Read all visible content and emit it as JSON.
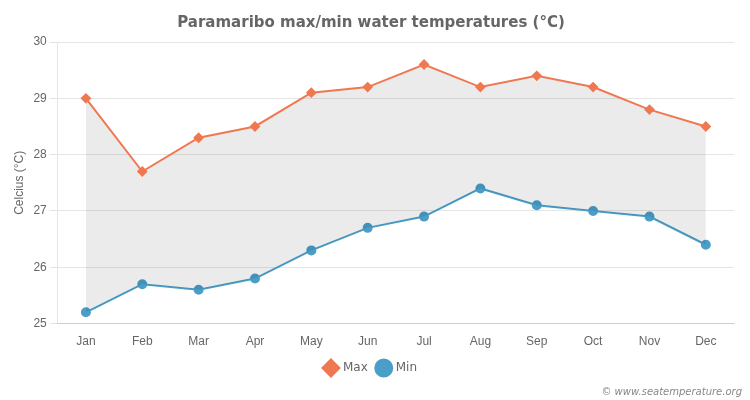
{
  "chart_data": {
    "type": "line",
    "title": "Paramaribo max/min water temperatures (°C)",
    "ylabel": "Celcius (°C)",
    "categories": [
      "Jan",
      "Feb",
      "Mar",
      "Apr",
      "May",
      "Jun",
      "Jul",
      "Aug",
      "Sep",
      "Oct",
      "Nov",
      "Dec"
    ],
    "series": [
      {
        "name": "Max",
        "color": "#f07850",
        "marker": "diamond",
        "values": [
          29.0,
          27.7,
          28.3,
          28.5,
          29.1,
          29.2,
          29.6,
          29.2,
          29.4,
          29.2,
          28.8,
          28.5
        ]
      },
      {
        "name": "Min",
        "color": "#4a9ec8",
        "marker": "circle",
        "values": [
          25.2,
          25.7,
          25.6,
          25.8,
          26.3,
          26.7,
          26.9,
          27.4,
          27.1,
          27.0,
          26.9,
          26.4
        ]
      }
    ],
    "ylim": [
      25,
      30
    ],
    "yticks": [
      25,
      26,
      27,
      28,
      29,
      30
    ],
    "grid": true,
    "legend": "bottom",
    "annotations": [
      "© www.seatemperature.org"
    ]
  }
}
